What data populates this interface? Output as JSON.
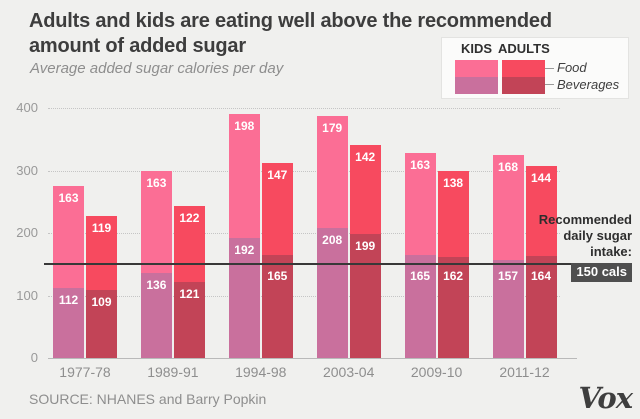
{
  "header": {
    "title_line1": "Adults and kids are eating well above the recommended",
    "title_line2": "amount of added sugar",
    "subtitle": "Average added sugar calories per day"
  },
  "legend": {
    "kids_label": "KIDS",
    "adults_label": "ADULTS",
    "food_label": "Food",
    "beverages_label": "Beverages"
  },
  "annotation": {
    "lines": [
      "Recommended",
      "daily sugar",
      "intake:"
    ],
    "badge": "150 cals"
  },
  "footer": {
    "source": "SOURCE: NHANES and Barry Popkin",
    "brand": "Vox"
  },
  "colors": {
    "kids_food": "#fb6e95",
    "kids_beverages": "#c9709d",
    "adults_food": "#f74a5f",
    "adults_beverages": "#c24457",
    "background": "#f0f0ee",
    "reference_line": "#383838",
    "badge_bg": "#4f4f4f"
  },
  "chart_data": {
    "type": "bar",
    "stacked": true,
    "title": "Adults and kids are eating well above the recommended amount of added sugar",
    "subtitle": "Average added sugar calories per day",
    "categories": [
      "1977-78",
      "1989-91",
      "1994-98",
      "2003-04",
      "2009-10",
      "2011-12"
    ],
    "groups": [
      "KIDS",
      "ADULTS"
    ],
    "segments": [
      "Food",
      "Beverages"
    ],
    "series": [
      {
        "name": "Kids Food",
        "values": [
          163,
          163,
          198,
          179,
          163,
          168
        ]
      },
      {
        "name": "Kids Beverages",
        "values": [
          112,
          136,
          192,
          208,
          165,
          157
        ]
      },
      {
        "name": "Adults Food",
        "values": [
          119,
          122,
          147,
          142,
          138,
          144
        ]
      },
      {
        "name": "Adults Beverages",
        "values": [
          109,
          121,
          165,
          199,
          162,
          164
        ]
      }
    ],
    "ylim": [
      0,
      400
    ],
    "yticks": [
      0,
      100,
      200,
      300,
      400
    ],
    "grid": "dotted-horizontal",
    "legend_position": "top-right",
    "reference_line": {
      "value": 150,
      "label": "Recommended daily sugar intake:",
      "badge": "150 cals"
    },
    "source": "SOURCE: NHANES and Barry Popkin",
    "brand": "Vox"
  }
}
